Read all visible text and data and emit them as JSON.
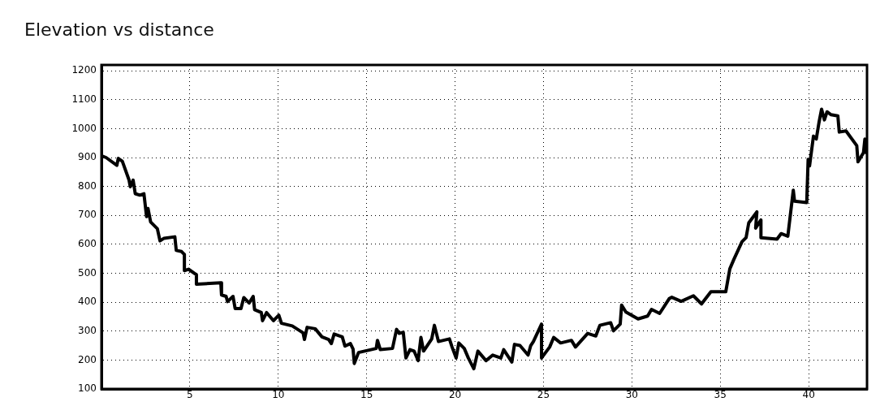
{
  "chart_data": {
    "type": "line",
    "title": "Elevation vs distance",
    "x": [
      0,
      0.26,
      0.87,
      0.95,
      1.18,
      1.56,
      1.63,
      1.79,
      1.91,
      2.17,
      2.4,
      2.55,
      2.63,
      2.78,
      3.16,
      3.31,
      3.54,
      4.15,
      4.23,
      4.53,
      4.69,
      4.69,
      4.92,
      5.37,
      5.37,
      6.75,
      6.79,
      7.05,
      7.13,
      7.44,
      7.56,
      7.89,
      8.05,
      8.35,
      8.58,
      8.66,
      9.04,
      9.11,
      9.34,
      9.73,
      10.03,
      10.18,
      10.79,
      11.4,
      11.48,
      11.63,
      12.09,
      12.47,
      12.85,
      13,
      13.16,
      13.62,
      13.77,
      14.08,
      14.23,
      14.3,
      14.54,
      15.54,
      15.61,
      15.77,
      16.46,
      16.69,
      16.84,
      17.07,
      17.22,
      17.45,
      17.68,
      17.91,
      18.07,
      18.22,
      18.68,
      18.83,
      19.06,
      19.68,
      19.83,
      20.06,
      20.21,
      20.52,
      20.75,
      21.06,
      21.29,
      21.75,
      22.13,
      22.59,
      22.75,
      23.21,
      23.36,
      23.67,
      24.13,
      24.28,
      24.43,
      24.89,
      24.89,
      25.35,
      25.58,
      25.97,
      26.58,
      26.81,
      27.5,
      27.96,
      28.19,
      28.8,
      28.96,
      29.34,
      29.42,
      29.66,
      30.35,
      30.89,
      31.11,
      31.57,
      32.11,
      32.26,
      32.79,
      33.48,
      33.94,
      34.47,
      35.31,
      35.54,
      35.77,
      36.23,
      36.46,
      36.61,
      37.07,
      37,
      37.3,
      37.3,
      38.21,
      38.44,
      38.82,
      39.13,
      39.2,
      39.89,
      39.97,
      40.05,
      40.27,
      40.43,
      40.58,
      40.73,
      40.89,
      41.04,
      41.27,
      41.65,
      41.73,
      42.11,
      42.72,
      42.79,
      43.1,
      43.18,
      43.25
    ],
    "series": [
      {
        "color": "#000000",
        "values": [
          906,
          900,
          873,
          897,
          887,
          822,
          799,
          822,
          775,
          770,
          775,
          696,
          724,
          677,
          654,
          612,
          621,
          626,
          579,
          575,
          565,
          509,
          514,
          495,
          462,
          467,
          425,
          420,
          402,
          420,
          378,
          378,
          416,
          397,
          420,
          374,
          364,
          336,
          364,
          336,
          355,
          327,
          318,
          294,
          271,
          313,
          308,
          280,
          271,
          257,
          290,
          280,
          248,
          257,
          238,
          188,
          226,
          240,
          268,
          236,
          240,
          306,
          292,
          296,
          207,
          236,
          231,
          198,
          278,
          231,
          273,
          320,
          264,
          273,
          245,
          207,
          259,
          240,
          207,
          170,
          231,
          198,
          217,
          207,
          236,
          193,
          254,
          250,
          217,
          250,
          264,
          324,
          207,
          245,
          278,
          259,
          268,
          245,
          292,
          283,
          320,
          329,
          301,
          324,
          390,
          366,
          342,
          352,
          375,
          361,
          412,
          417,
          403,
          422,
          394,
          436,
          436,
          515,
          548,
          609,
          623,
          674,
          712,
          656,
          684,
          623,
          618,
          637,
          628,
          787,
          749,
          744,
          894,
          871,
          974,
          964,
          1020,
          1067,
          1030,
          1058,
          1048,
          1044,
          988,
          992,
          941,
          885,
          917,
          964,
          917
        ]
      }
    ],
    "xlim": [
      0,
      43.3
    ],
    "ylim": [
      100,
      1220
    ],
    "xticks": [
      5,
      10,
      15,
      20,
      25,
      30,
      35,
      40
    ],
    "yticks": [
      100,
      200,
      300,
      400,
      500,
      600,
      700,
      800,
      900,
      1000,
      1100,
      1200
    ],
    "grid": true,
    "marker": "none",
    "line_style": "solid"
  }
}
